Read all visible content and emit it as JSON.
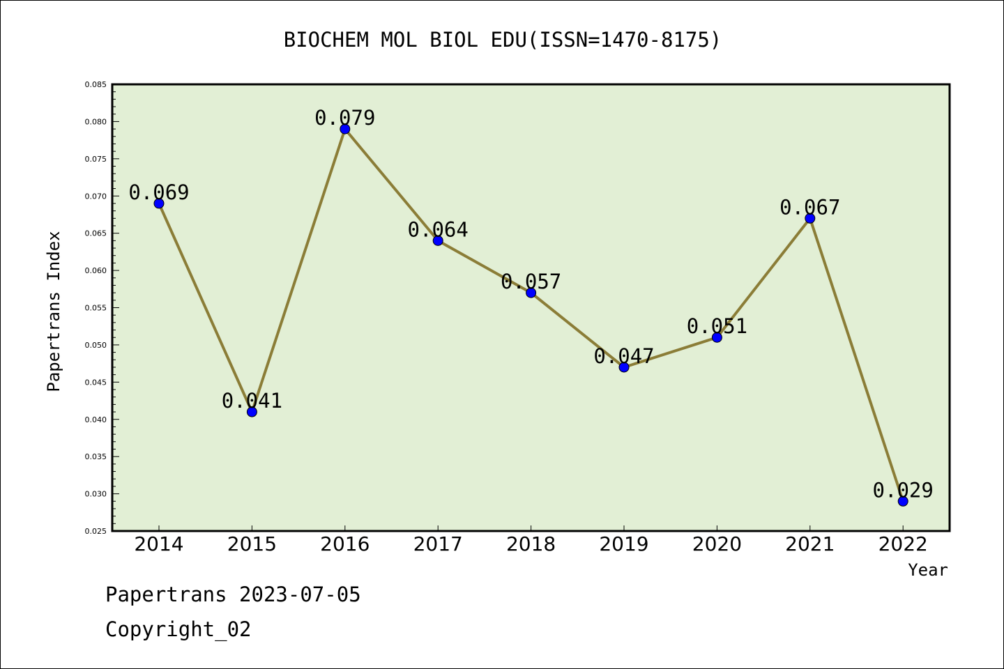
{
  "chart_data": {
    "type": "line",
    "title": "BIOCHEM MOL BIOL EDU(ISSN=1470-8175)",
    "xlabel": "Year",
    "ylabel": "Papertrans Index",
    "categories": [
      "2014",
      "2015",
      "2016",
      "2017",
      "2018",
      "2019",
      "2020",
      "2021",
      "2022"
    ],
    "series": [
      {
        "values": [
          0.069,
          0.041,
          0.079,
          0.064,
          0.057,
          0.047,
          0.051,
          0.067,
          0.029
        ]
      }
    ],
    "data_labels": [
      "0.069",
      "0.041",
      "0.079",
      "0.064",
      "0.057",
      "0.047",
      "0.051",
      "0.067",
      "0.029"
    ],
    "ylim": [
      0.025,
      0.085
    ],
    "y_ticks": [
      "0.025",
      "0.030",
      "0.035",
      "0.040",
      "0.045",
      "0.050",
      "0.055",
      "0.060",
      "0.065",
      "0.070",
      "0.075",
      "0.080",
      "0.085"
    ],
    "grid": false,
    "legend": "none",
    "colors": {
      "plot_background": "#e2efd5",
      "line": "#8b7d37",
      "marker": "#0000ff"
    }
  },
  "footer": {
    "line1": "Papertrans 2023-07-05",
    "line2": "Copyright_02"
  }
}
